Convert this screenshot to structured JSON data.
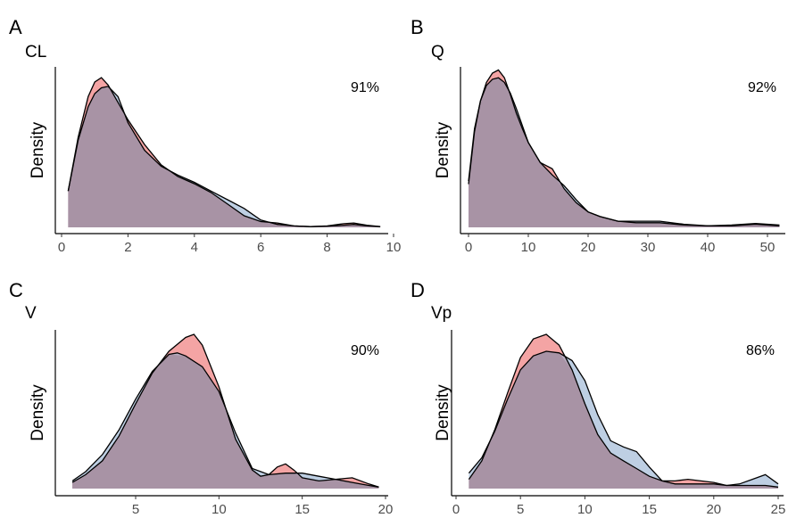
{
  "chart_data": [
    {
      "type": "area",
      "panel_label": "A",
      "title": "CL",
      "ylabel": "Density",
      "annotation": "91%",
      "xlim": [
        0,
        10
      ],
      "xticks": [
        0,
        2,
        4,
        6,
        8,
        10
      ],
      "ylim": [
        0,
        1
      ],
      "grid": false,
      "series": [
        {
          "color": "#F4A4A4",
          "x": [
            0.2,
            0.5,
            0.8,
            1.0,
            1.2,
            1.4,
            1.7,
            2.0,
            2.5,
            3.0,
            3.5,
            4.0,
            4.5,
            5.0,
            5.5,
            6.0,
            6.5,
            7.0,
            7.5,
            8.0,
            8.5,
            8.8,
            9.2,
            9.6
          ],
          "y": [
            0.25,
            0.62,
            0.9,
            1.0,
            1.03,
            0.98,
            0.86,
            0.74,
            0.57,
            0.43,
            0.35,
            0.3,
            0.24,
            0.16,
            0.08,
            0.04,
            0.03,
            0.01,
            0.005,
            0.01,
            0.025,
            0.03,
            0.015,
            0.005
          ]
        },
        {
          "color": "#9BB5D4",
          "x": [
            0.2,
            0.5,
            0.8,
            1.0,
            1.2,
            1.4,
            1.7,
            2.0,
            2.5,
            3.0,
            3.5,
            4.0,
            4.5,
            5.0,
            5.5,
            6.0,
            6.5,
            7.0,
            7.5,
            8.0,
            8.5,
            8.8,
            9.2,
            9.6
          ],
          "y": [
            0.25,
            0.6,
            0.83,
            0.92,
            0.96,
            0.97,
            0.9,
            0.72,
            0.53,
            0.42,
            0.36,
            0.31,
            0.25,
            0.19,
            0.13,
            0.05,
            0.02,
            0.01,
            0.005,
            0.008,
            0.015,
            0.02,
            0.01,
            0.005
          ]
        }
      ]
    },
    {
      "type": "area",
      "panel_label": "B",
      "title": "Q",
      "ylabel": "Density",
      "annotation": "92%",
      "xlim": [
        0,
        52
      ],
      "xticks": [
        0,
        10,
        20,
        30,
        40,
        50
      ],
      "ylim": [
        0,
        1
      ],
      "grid": false,
      "series": [
        {
          "color": "#F4A4A4",
          "x": [
            0,
            1,
            2,
            3,
            4,
            5,
            6,
            7,
            8,
            9,
            10,
            12,
            14,
            16,
            18,
            20,
            22,
            25,
            28,
            32,
            36,
            40,
            44,
            48,
            52
          ],
          "y": [
            0.28,
            0.62,
            0.82,
            0.94,
            1.0,
            1.02,
            0.97,
            0.86,
            0.74,
            0.64,
            0.55,
            0.42,
            0.38,
            0.25,
            0.16,
            0.1,
            0.07,
            0.04,
            0.03,
            0.03,
            0.015,
            0.01,
            0.01,
            0.02,
            0.01
          ]
        },
        {
          "color": "#9BB5D4",
          "x": [
            0,
            1,
            2,
            3,
            4,
            5,
            6,
            7,
            8,
            9,
            10,
            12,
            14,
            16,
            18,
            20,
            22,
            25,
            28,
            32,
            36,
            40,
            44,
            48,
            52
          ],
          "y": [
            0.3,
            0.64,
            0.82,
            0.92,
            0.96,
            0.97,
            0.94,
            0.87,
            0.77,
            0.66,
            0.55,
            0.42,
            0.34,
            0.27,
            0.18,
            0.1,
            0.07,
            0.04,
            0.04,
            0.04,
            0.02,
            0.01,
            0.015,
            0.025,
            0.015
          ]
        }
      ]
    },
    {
      "type": "area",
      "panel_label": "C",
      "title": "V",
      "ylabel": "Density",
      "annotation": "90%",
      "xlim": [
        1,
        20
      ],
      "xticks": [
        5,
        10,
        15,
        20
      ],
      "ylim": [
        0,
        1
      ],
      "grid": false,
      "series": [
        {
          "color": "#F4A4A4",
          "x": [
            1.2,
            2,
            3,
            4,
            5,
            6,
            7,
            8,
            8.5,
            9,
            10,
            11,
            12,
            12.5,
            13,
            13.5,
            14,
            14.5,
            15,
            16,
            17,
            18,
            19,
            19.6
          ],
          "y": [
            0.04,
            0.09,
            0.18,
            0.34,
            0.55,
            0.75,
            0.89,
            0.98,
            1.0,
            0.93,
            0.66,
            0.32,
            0.12,
            0.08,
            0.09,
            0.14,
            0.16,
            0.12,
            0.07,
            0.05,
            0.06,
            0.07,
            0.03,
            0.01
          ]
        },
        {
          "color": "#9BB5D4",
          "x": [
            1.2,
            2,
            3,
            4,
            5,
            6,
            7,
            7.5,
            8,
            9,
            10,
            11,
            12,
            13,
            14,
            15,
            16,
            17,
            18,
            19,
            19.6
          ],
          "y": [
            0.05,
            0.11,
            0.22,
            0.38,
            0.58,
            0.76,
            0.87,
            0.88,
            0.86,
            0.79,
            0.63,
            0.36,
            0.13,
            0.09,
            0.1,
            0.1,
            0.08,
            0.06,
            0.04,
            0.02,
            0.01
          ]
        }
      ]
    },
    {
      "type": "area",
      "panel_label": "D",
      "title": "Vp",
      "ylabel": "Density",
      "annotation": "86%",
      "xlim": [
        0,
        25
      ],
      "xticks": [
        0,
        5,
        10,
        15,
        20,
        25
      ],
      "ylim": [
        0,
        1
      ],
      "grid": false,
      "series": [
        {
          "color": "#F4A4A4",
          "x": [
            1,
            2,
            3,
            4,
            5,
            6,
            7,
            8,
            9,
            10,
            11,
            12,
            13,
            14,
            15,
            16,
            17,
            18,
            19,
            20,
            21,
            22,
            23,
            24,
            25
          ],
          "y": [
            0.06,
            0.18,
            0.38,
            0.62,
            0.85,
            0.97,
            1.0,
            0.93,
            0.77,
            0.55,
            0.35,
            0.23,
            0.18,
            0.13,
            0.08,
            0.05,
            0.05,
            0.06,
            0.05,
            0.04,
            0.02,
            0.02,
            0.02,
            0.02,
            0.01
          ]
        },
        {
          "color": "#9BB5D4",
          "x": [
            1,
            2,
            3,
            4,
            5,
            6,
            7,
            8,
            9,
            10,
            11,
            12,
            13,
            14,
            15,
            16,
            17,
            18,
            19,
            20,
            21,
            22,
            23,
            24,
            25
          ],
          "y": [
            0.1,
            0.2,
            0.37,
            0.58,
            0.77,
            0.86,
            0.89,
            0.88,
            0.83,
            0.7,
            0.48,
            0.31,
            0.27,
            0.24,
            0.14,
            0.05,
            0.03,
            0.03,
            0.03,
            0.03,
            0.02,
            0.03,
            0.06,
            0.09,
            0.03
          ]
        }
      ]
    }
  ],
  "overlap_color": "#A893A5",
  "line_color": "#000000"
}
